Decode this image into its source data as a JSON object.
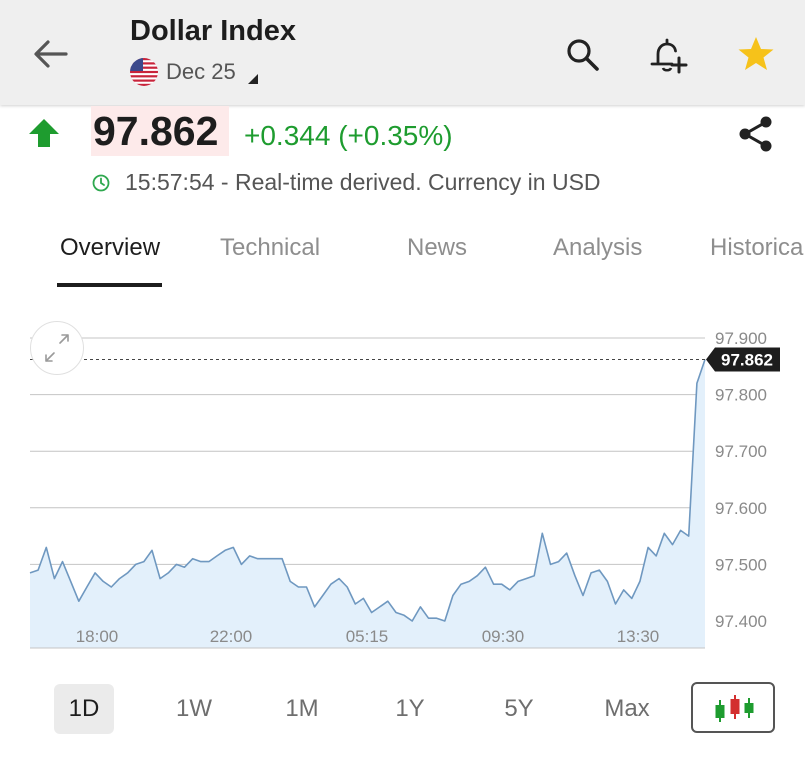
{
  "header": {
    "title": "Dollar Index",
    "contract": "Dec 25",
    "icons": [
      "back-arrow-icon",
      "search-icon",
      "add-alert-bell-icon",
      "star-icon"
    ],
    "star_color": "#f6c21a"
  },
  "quote": {
    "price": "97.862",
    "change": "+0.344 (+0.35%)",
    "status": "15:57:54 - Real-time derived. Currency in USD",
    "direction": "up",
    "up_color": "#1e9c2f"
  },
  "tabs": [
    {
      "label": "Overview",
      "active": true
    },
    {
      "label": "Technical",
      "active": false
    },
    {
      "label": "News",
      "active": false
    },
    {
      "label": "Analysis",
      "active": false
    },
    {
      "label": "Historical",
      "active": false
    }
  ],
  "ranges": [
    {
      "label": "1D",
      "active": true
    },
    {
      "label": "1W",
      "active": false
    },
    {
      "label": "1M",
      "active": false
    },
    {
      "label": "1Y",
      "active": false
    },
    {
      "label": "5Y",
      "active": false
    },
    {
      "label": "Max",
      "active": false
    }
  ],
  "chart_data": {
    "type": "area",
    "current_label": "97.862",
    "current_value": 97.862,
    "y_ticks": [
      "97.900",
      "97.800",
      "97.700",
      "97.600",
      "97.500",
      "97.400"
    ],
    "x_ticks": [
      "18:00",
      "22:00",
      "05:15",
      "09:30",
      "13:30"
    ],
    "ylim": [
      97.38,
      97.92
    ],
    "grid": true,
    "line_color": "#6f98c0",
    "fill_color": "#e3f0fb",
    "values": [
      97.485,
      97.49,
      97.53,
      97.475,
      97.505,
      97.47,
      97.435,
      97.46,
      97.485,
      97.47,
      97.46,
      97.475,
      97.485,
      97.5,
      97.505,
      97.525,
      97.475,
      97.485,
      97.5,
      97.495,
      97.51,
      97.505,
      97.505,
      97.515,
      97.525,
      97.53,
      97.5,
      97.515,
      97.51,
      97.51,
      97.51,
      97.51,
      97.47,
      97.46,
      97.46,
      97.425,
      97.445,
      97.465,
      97.475,
      97.46,
      97.43,
      97.44,
      97.415,
      97.425,
      97.435,
      97.415,
      97.41,
      97.4,
      97.425,
      97.405,
      97.405,
      97.4,
      97.445,
      97.465,
      97.47,
      97.48,
      97.495,
      97.465,
      97.465,
      97.455,
      97.47,
      97.475,
      97.48,
      97.555,
      97.5,
      97.505,
      97.52,
      97.48,
      97.445,
      97.485,
      97.49,
      97.47,
      97.43,
      97.455,
      97.44,
      97.47,
      97.53,
      97.515,
      97.555,
      97.535,
      97.56,
      97.55,
      97.82,
      97.862
    ]
  }
}
